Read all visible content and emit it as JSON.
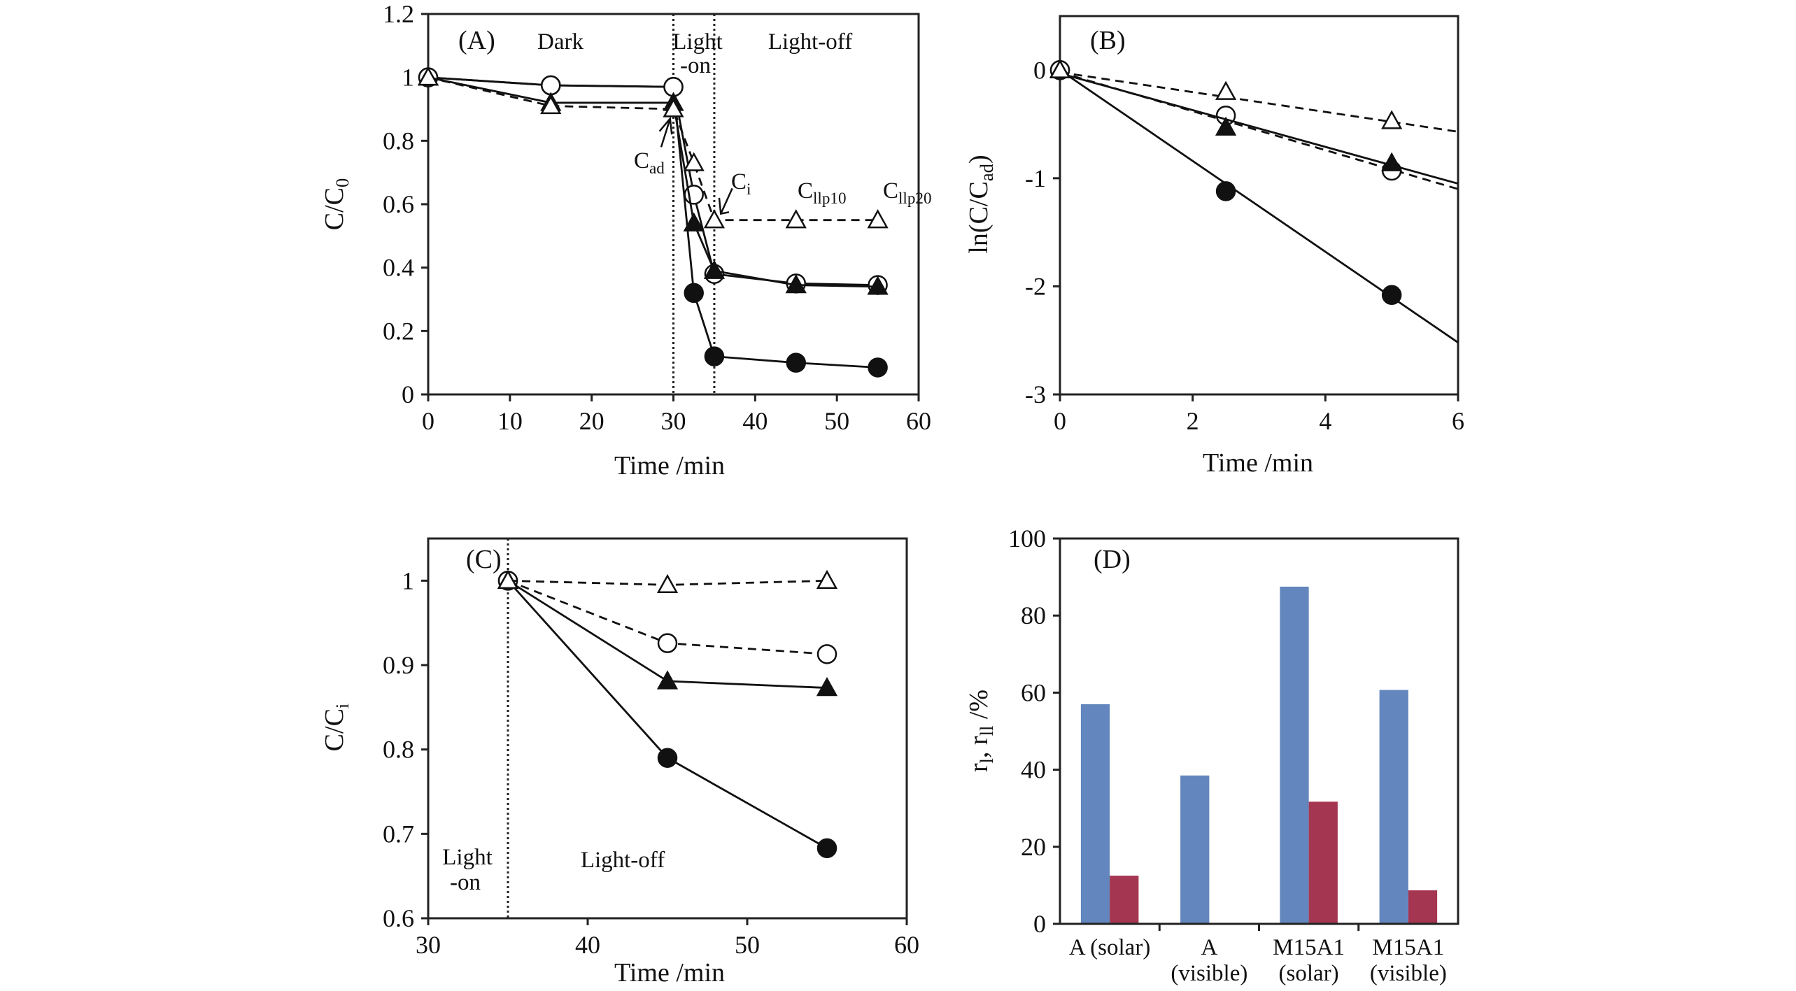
{
  "chart_data": [
    {
      "id": "A",
      "type": "line",
      "panel_label": "(A)",
      "xlabel": "Time /min",
      "ylabel": {
        "main": "C/C",
        "sub": "0"
      },
      "xlim": [
        0,
        60
      ],
      "ylim": [
        0,
        1.2
      ],
      "xticks": [
        0,
        10,
        20,
        30,
        40,
        50,
        60
      ],
      "yticks": [
        0,
        0.2,
        0.4,
        0.6,
        0.8,
        1,
        1.2
      ],
      "vlines": [
        30,
        35
      ],
      "annotations": [
        {
          "text": "Dark"
        },
        {
          "text": "Light"
        },
        {
          "text": "-on"
        },
        {
          "text": "Light-off"
        },
        {
          "text": "C",
          "sub": "ad"
        },
        {
          "text": "C",
          "sub": "i"
        },
        {
          "text": "C",
          "sub": "llp10"
        },
        {
          "text": "C",
          "sub": "llp20"
        }
      ],
      "series": [
        {
          "marker": "filled-circle",
          "style": "solid",
          "x": [
            0,
            15,
            30,
            32.5,
            35,
            45,
            55
          ],
          "y": [
            1,
            0.975,
            0.97,
            0.32,
            0.12,
            0.1,
            0.085
          ]
        },
        {
          "marker": "open-circle",
          "style": "solid",
          "x": [
            0,
            15,
            30,
            32.5,
            35,
            45,
            55
          ],
          "y": [
            1,
            0.975,
            0.97,
            0.63,
            0.38,
            0.35,
            0.345
          ]
        },
        {
          "marker": "filled-triangle",
          "style": "solid",
          "x": [
            0,
            15,
            30,
            32.5,
            35,
            45,
            55
          ],
          "y": [
            1,
            0.92,
            0.92,
            0.54,
            0.39,
            0.345,
            0.34
          ]
        },
        {
          "marker": "open-triangle",
          "style": "dashed",
          "x": [
            0,
            15,
            30,
            32.5,
            35,
            45,
            55
          ],
          "y": [
            1,
            0.91,
            0.9,
            0.73,
            0.55,
            0.55,
            0.55
          ]
        }
      ]
    },
    {
      "id": "B",
      "type": "scatter",
      "panel_label": "(B)",
      "xlabel": "Time /min",
      "ylabel": {
        "main": "ln(C/C",
        "sub": "ad",
        "tail": ")"
      },
      "xlim": [
        0,
        6
      ],
      "ylim": [
        -3,
        0.5
      ],
      "xticks": [
        0,
        2,
        4,
        6
      ],
      "yticks": [
        -3,
        -2,
        -1,
        0
      ],
      "series": [
        {
          "marker": "filled-circle",
          "style": "solid",
          "x": [
            0,
            2.5,
            5
          ],
          "y": [
            0,
            -1.12,
            -2.08
          ],
          "fit": [
            [
              0,
              0
            ],
            [
              6,
              -2.52
            ]
          ]
        },
        {
          "marker": "open-circle",
          "style": "dashed",
          "x": [
            0,
            2.5,
            5
          ],
          "y": [
            0,
            -0.42,
            -0.93
          ],
          "fit": [
            [
              0,
              -0.02
            ],
            [
              6,
              -1.1
            ]
          ]
        },
        {
          "marker": "filled-triangle",
          "style": "solid",
          "x": [
            0,
            2.5,
            5
          ],
          "y": [
            0,
            -0.53,
            -0.86
          ],
          "fit": [
            [
              0,
              -0.03
            ],
            [
              6,
              -1.05
            ]
          ]
        },
        {
          "marker": "open-triangle",
          "style": "dashed",
          "x": [
            0,
            2.5,
            5
          ],
          "y": [
            0,
            -0.2,
            -0.47
          ],
          "fit": [
            [
              0,
              -0.02
            ],
            [
              6,
              -0.57
            ]
          ]
        }
      ]
    },
    {
      "id": "C",
      "type": "line",
      "panel_label": "(C)",
      "xlabel": "Time /min",
      "ylabel": {
        "main": "C/C",
        "sub": "i"
      },
      "xlim": [
        30,
        60
      ],
      "ylim": [
        0.6,
        1.05
      ],
      "xticks": [
        30,
        40,
        50,
        60
      ],
      "yticks": [
        0.6,
        0.7,
        0.8,
        0.9,
        1
      ],
      "vlines": [
        35
      ],
      "annotations": [
        {
          "text": "Light"
        },
        {
          "text": "-on"
        },
        {
          "text": "Light-off"
        }
      ],
      "series": [
        {
          "marker": "filled-circle",
          "style": "solid",
          "x": [
            35,
            45,
            55
          ],
          "y": [
            1,
            0.79,
            0.683
          ]
        },
        {
          "marker": "open-circle",
          "style": "dashed",
          "x": [
            35,
            45,
            55
          ],
          "y": [
            1,
            0.926,
            0.913
          ]
        },
        {
          "marker": "filled-triangle",
          "style": "solid",
          "x": [
            35,
            45,
            55
          ],
          "y": [
            1,
            0.881,
            0.873
          ]
        },
        {
          "marker": "open-triangle",
          "style": "dashed",
          "x": [
            35,
            45,
            55
          ],
          "y": [
            1,
            0.995,
            1.0
          ]
        }
      ]
    },
    {
      "id": "D",
      "type": "bar",
      "panel_label": "(D)",
      "ylabel": {
        "main": "r",
        "sub": "l",
        "mid": ", r",
        "sub2": "ll",
        "tail": " /%"
      },
      "ylim": [
        0,
        100
      ],
      "yticks": [
        0,
        20,
        40,
        60,
        80,
        100
      ],
      "categories": [
        [
          "A (solar)"
        ],
        [
          "A",
          "(visible)"
        ],
        [
          "M15A1",
          "(solar)"
        ],
        [
          "M15A1",
          "(visible)"
        ]
      ],
      "series": [
        {
          "name": "r_l",
          "color": "#6286bd",
          "values": [
            57,
            38.5,
            87.5,
            60.7
          ]
        },
        {
          "name": "r_ll",
          "color": "#a43651",
          "values": [
            12.5,
            0,
            31.7,
            8.7
          ]
        }
      ]
    }
  ]
}
